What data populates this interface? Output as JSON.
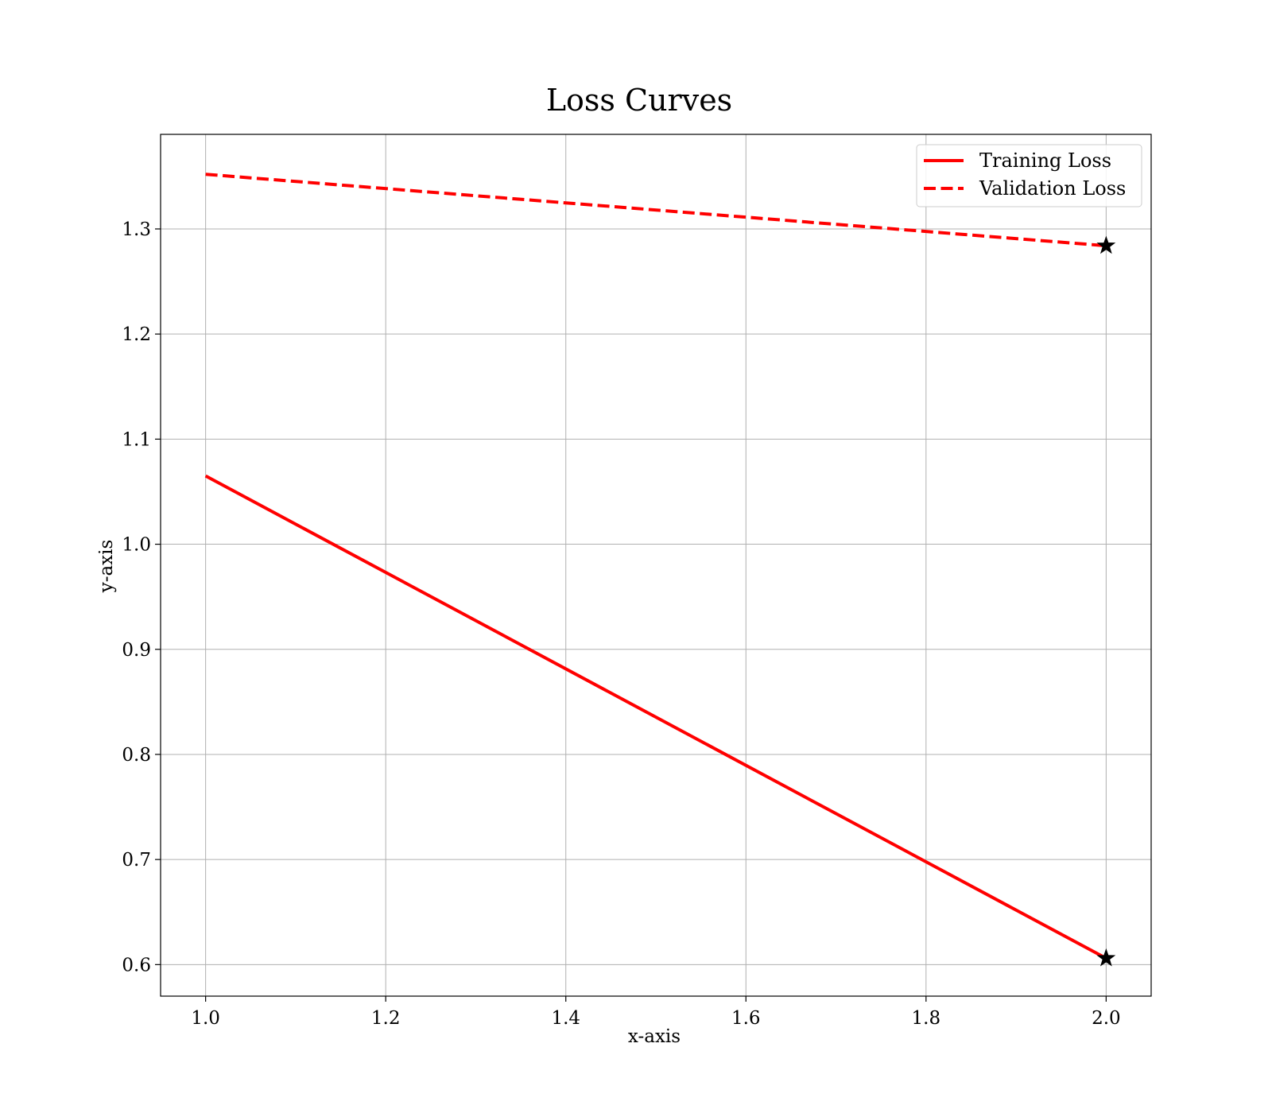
{
  "chart_data": {
    "type": "line",
    "title": "Loss Curves",
    "xlabel": "x-axis",
    "ylabel": "y-axis",
    "xlim": [
      0.95,
      2.05
    ],
    "ylim": [
      0.57,
      1.39
    ],
    "xticks": [
      "1.0",
      "1.2",
      "1.4",
      "1.6",
      "1.8",
      "2.0"
    ],
    "yticks": [
      "0.6",
      "0.7",
      "0.8",
      "0.9",
      "1.0",
      "1.1",
      "1.2",
      "1.3"
    ],
    "grid": true,
    "legend_position": "top-right",
    "series": [
      {
        "name": "Training Loss",
        "x": [
          1.0,
          2.0
        ],
        "y": [
          1.065,
          0.606
        ],
        "color": "#ff0000",
        "style": "solid",
        "marker_at_end": "star"
      },
      {
        "name": "Validation Loss",
        "x": [
          1.0,
          2.0
        ],
        "y": [
          1.352,
          1.284
        ],
        "color": "#ff0000",
        "style": "dashed",
        "marker_at_end": "star"
      }
    ],
    "marker_color": "#000000"
  }
}
